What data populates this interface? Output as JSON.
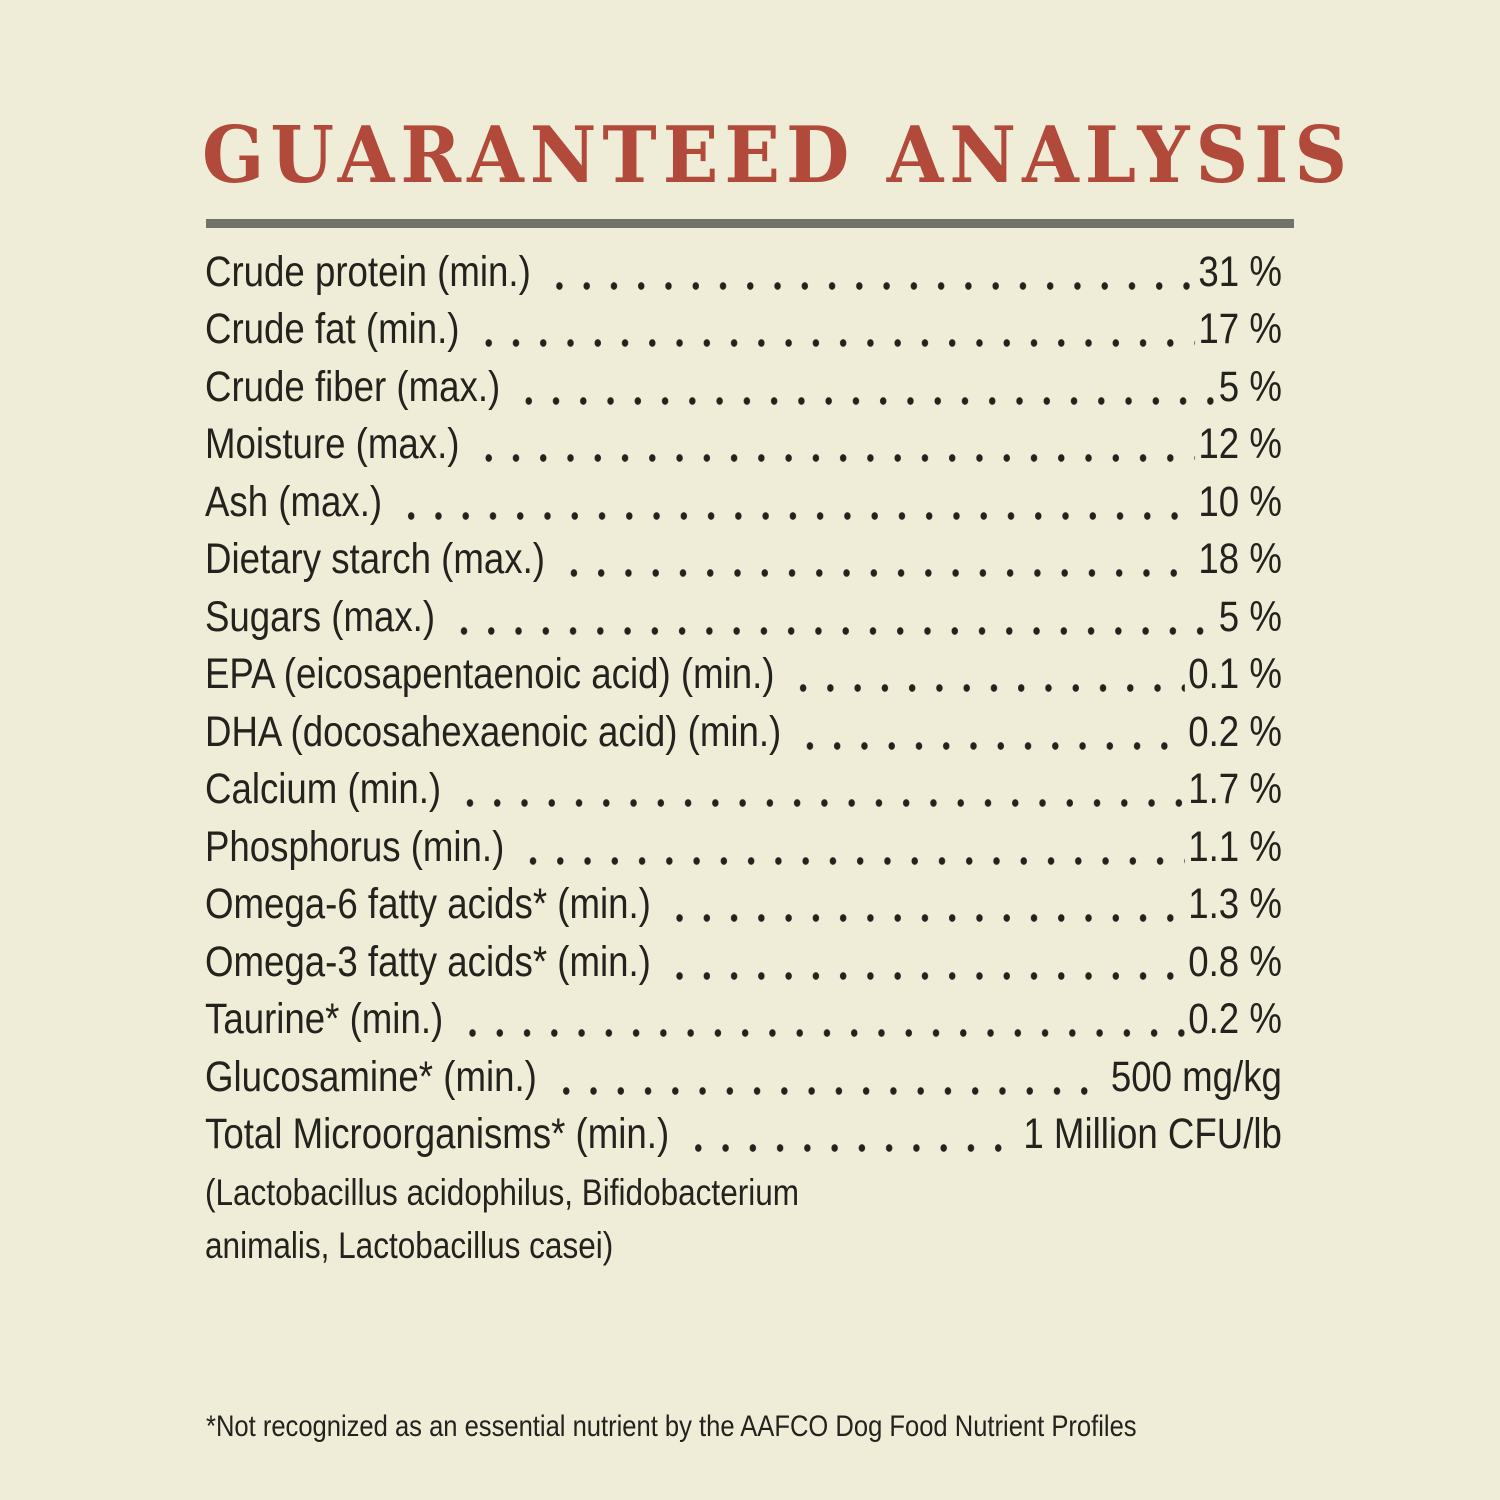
{
  "page": {
    "title": "GUARANTEED ANALYSIS",
    "background_color": "#efedd8",
    "title_color": "#b14a3a",
    "text_color": "#23221d",
    "divider_color": "#72726b"
  },
  "analysis": {
    "rows": [
      {
        "label": "Crude protein (min.)",
        "value": "31 %"
      },
      {
        "label": "Crude fat (min.)",
        "value": "17 %"
      },
      {
        "label": "Crude fiber (max.)",
        "value": "5 %"
      },
      {
        "label": "Moisture (max.)",
        "value": "12 %"
      },
      {
        "label": "Ash (max.)",
        "value": "10 %"
      },
      {
        "label": "Dietary starch (max.)",
        "value": "18 %"
      },
      {
        "label": "Sugars (max.)",
        "value": "5 %"
      },
      {
        "label": "EPA (eicosapentaenoic acid) (min.)",
        "value": "0.1 %"
      },
      {
        "label": "DHA (docosahexaenoic acid) (min.)",
        "value": "0.2 %"
      },
      {
        "label": "Calcium (min.)",
        "value": "1.7 %"
      },
      {
        "label": "Phosphorus (min.)",
        "value": "1.1 %"
      },
      {
        "label": "Omega-6 fatty acids* (min.)",
        "value": "1.3 %"
      },
      {
        "label": "Omega-3 fatty acids* (min.)",
        "value": "0.8 %"
      },
      {
        "label": "Taurine* (min.)",
        "value": "0.2 %"
      },
      {
        "label": "Glucosamine* (min.)",
        "value": "500 mg/kg"
      },
      {
        "label": "Total Microorganisms* (min.)",
        "value": "1 Million CFU/lb"
      }
    ],
    "microorganisms_note_lines": [
      "(Lactobacillus acidophilus, Bifidobacterium",
      "animalis, Lactobacillus casei)"
    ]
  },
  "footnote": "*Not recognized as an essential nutrient by the AAFCO Dog Food Nutrient Profiles"
}
